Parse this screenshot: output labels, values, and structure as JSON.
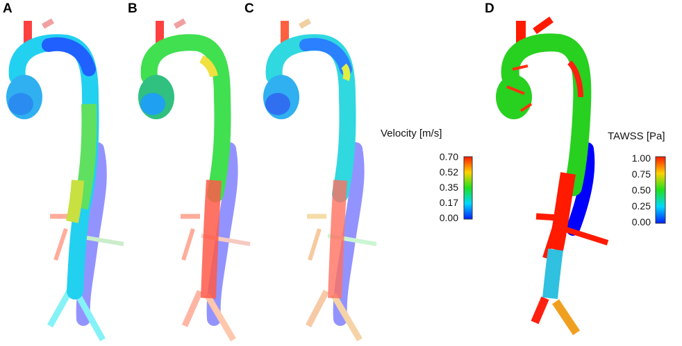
{
  "panels": [
    {
      "letter": "A"
    },
    {
      "letter": "B"
    },
    {
      "letter": "C"
    },
    {
      "letter": "D"
    }
  ],
  "velocity_legend": {
    "title": "Velocity [m/s]",
    "ticks": [
      "0.70",
      "0.52",
      "0.35",
      "0.17",
      "0.00"
    ]
  },
  "tawss_legend": {
    "title": "TAWSS [Pa]",
    "ticks": [
      "1.00",
      "0.75",
      "0.50",
      "0.25",
      "0.00"
    ]
  },
  "colormap": [
    "#ff0000",
    "#ffff00",
    "#00ff00",
    "#00ffff",
    "#0000ff"
  ]
}
